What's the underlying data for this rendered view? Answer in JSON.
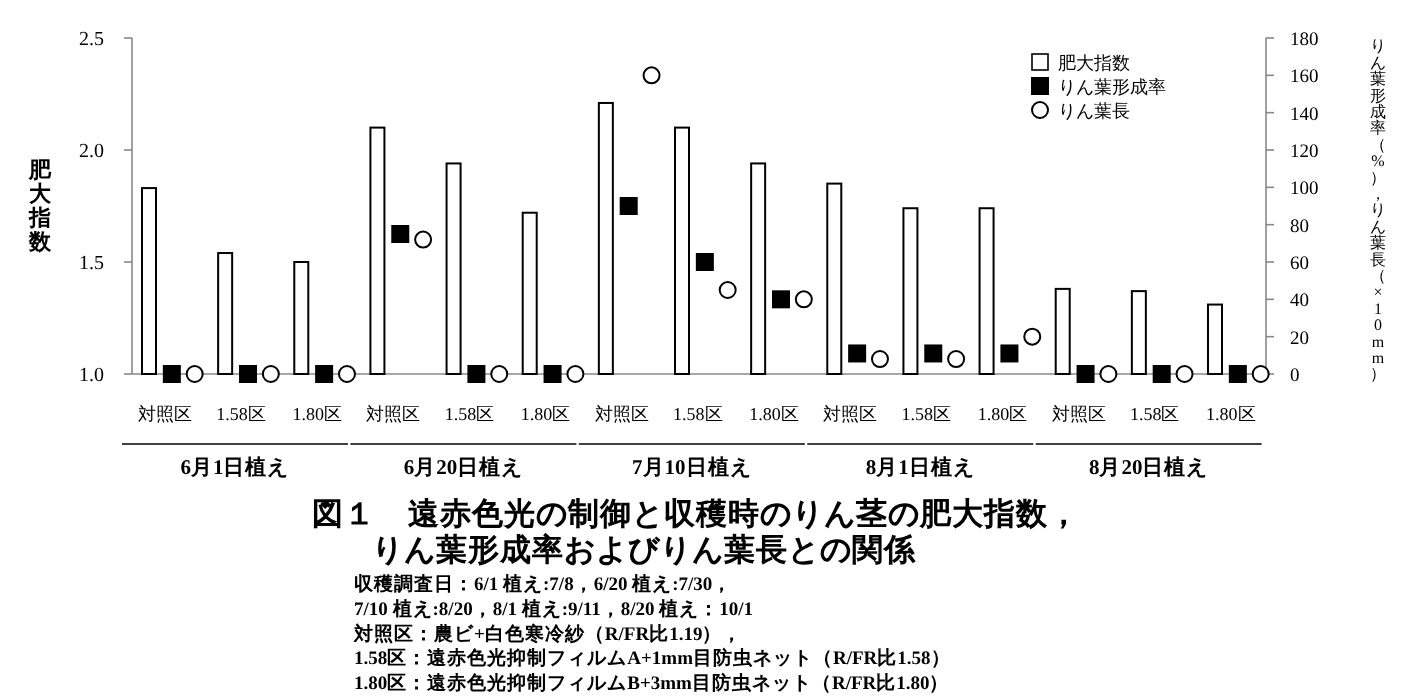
{
  "chart_data": {
    "type": "bar",
    "title": "図１　遠赤色光の制御と収穫時のりん茎の肥大指数，りん葉形成率およびりん葉長との関係",
    "ylabel": "肥大指数",
    "y2label": "りん葉形成率（%），りん葉長（×10mm）",
    "categories": [
      "対照区",
      "1.58区",
      "1.80区",
      "対照区",
      "1.58区",
      "1.80区",
      "対照区",
      "1.58区",
      "1.80区",
      "対照区",
      "1.58区",
      "1.80区",
      "対照区",
      "1.58区",
      "1.80区"
    ],
    "series": [
      {
        "name": "肥大指数",
        "color": "#ffffff",
        "values": [
          1.83,
          1.54,
          1.5,
          2.1,
          1.94,
          1.72,
          2.21,
          2.1,
          1.94,
          1.85,
          1.74,
          1.74,
          1.38,
          1.37,
          1.31
        ]
      },
      {
        "name": "りん葉形成率",
        "type": "scatter",
        "marker": "square",
        "axis": "y2",
        "color": "#000000",
        "values": [
          0,
          0,
          0,
          75,
          0,
          0,
          90,
          60,
          40,
          11,
          11,
          11,
          0,
          0,
          0
        ]
      },
      {
        "name": "りん葉長",
        "type": "scatter",
        "marker": "circle",
        "axis": "y2",
        "color": "#ffffff",
        "values": [
          0,
          0,
          0,
          72,
          0,
          0,
          160,
          45,
          40,
          8,
          8,
          20,
          0,
          0,
          0
        ]
      }
    ],
    "ylim": [
      1.0,
      2.5
    ],
    "yticks": [
      {
        "value": 1.0,
        "label": "1.0"
      },
      {
        "value": 1.5,
        "label": "1.5"
      },
      {
        "value": 2.0,
        "label": "2.0"
      },
      {
        "value": 2.5,
        "label": "2.5"
      }
    ],
    "y2lim": [
      0,
      180
    ],
    "y2ticks": [
      0,
      20,
      40,
      60,
      80,
      100,
      120,
      140,
      160,
      180
    ],
    "legend": "top right",
    "grid": false,
    "annotations": [
      "6月1日植え",
      "6月20日植え",
      "7月10日植え",
      "8月1日植え",
      "8月20日植え",
      "収穫調査日：6/1 植え:7/8，6/20 植え:7/30，",
      "7/10 植え:8/20，8/1 植え:9/11，8/20 植え：10/1",
      "対照区：農ビ+白色寒冷紗（R/FR比1.19），",
      "1.58区：遠赤色光抑制フィルムA+1mm目防虫ネット（R/FR比1.58）",
      "1.80区：遠赤色光抑制フィルムB+3mm目防虫ネット（R/FR比1.80）"
    ]
  }
}
